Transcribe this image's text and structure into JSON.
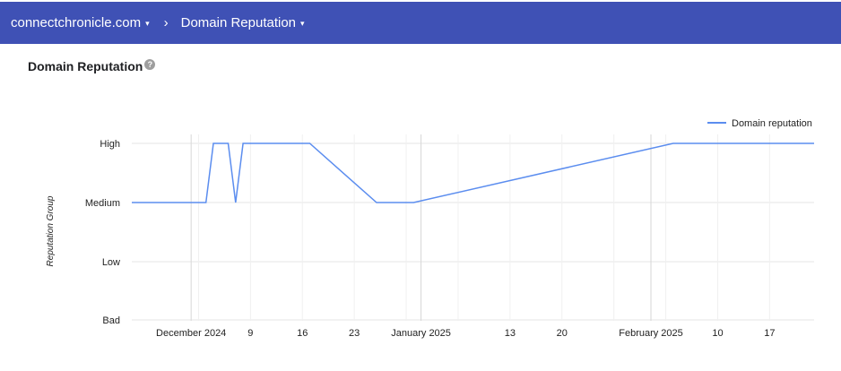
{
  "header": {
    "site": "connectchronicle.com",
    "separator": "›",
    "page": "Domain Reputation",
    "caret": "▾"
  },
  "section": {
    "title": "Domain Reputation",
    "help": "?"
  },
  "colors": {
    "header_bg": "#3f51b5",
    "line": "#5b8def",
    "grid": "#e6e6e6"
  },
  "chart_data": {
    "type": "line",
    "ylabel": "Reputation Group",
    "y_categories": [
      "Bad",
      "Low",
      "Medium",
      "High"
    ],
    "x_tick_labels": [
      "December 2024",
      "9",
      "16",
      "23",
      "January 2025",
      "13",
      "20",
      "February 2025",
      "10",
      "17"
    ],
    "legend": {
      "position": "top-right",
      "entries": [
        "Domain reputation"
      ]
    },
    "grid": true,
    "series": [
      {
        "name": "Domain reputation",
        "points": [
          [
            "2024-11-23",
            "Medium"
          ],
          [
            "2024-12-03",
            "Medium"
          ],
          [
            "2024-12-04",
            "High"
          ],
          [
            "2024-12-06",
            "High"
          ],
          [
            "2024-12-07",
            "Medium"
          ],
          [
            "2024-12-08",
            "High"
          ],
          [
            "2024-12-17",
            "High"
          ],
          [
            "2024-12-26",
            "Medium"
          ],
          [
            "2024-12-31",
            "Medium"
          ],
          [
            "2025-02-04",
            "High"
          ],
          [
            "2025-02-23",
            "High"
          ]
        ]
      }
    ]
  }
}
